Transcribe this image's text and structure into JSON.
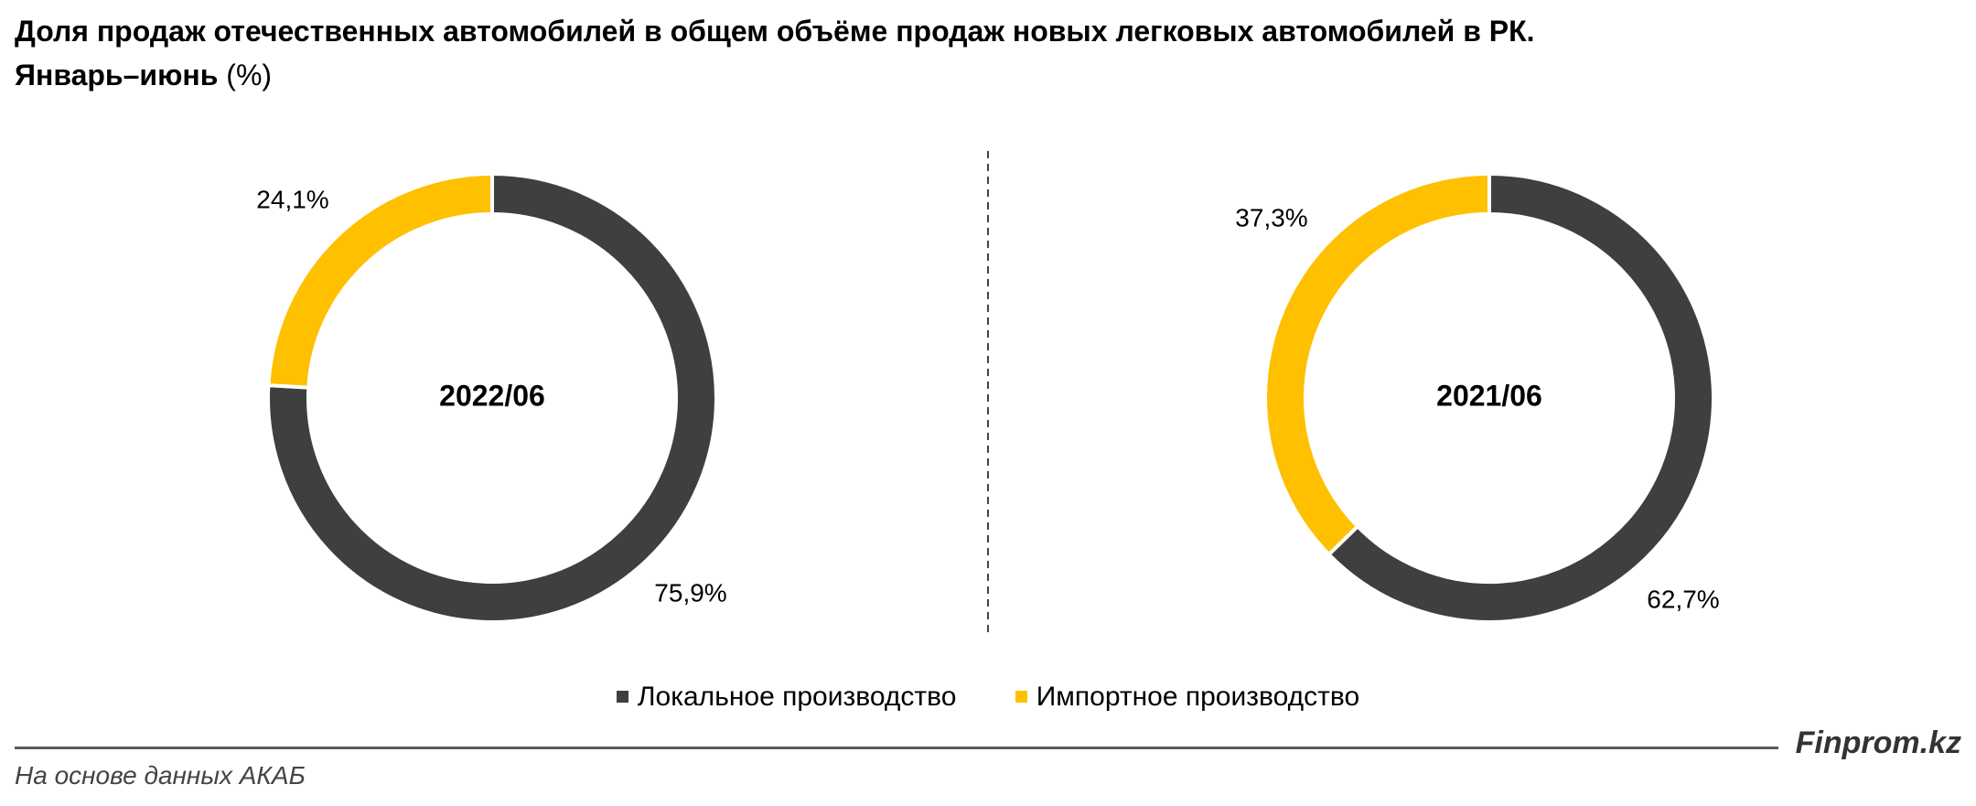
{
  "title": {
    "line1": "Доля продаж отечественных автомобилей в общем объёме продаж новых легковых автомобилей в РК.",
    "line2": "Январь–июнь",
    "unit": "(%)"
  },
  "chart_data": [
    {
      "type": "pie",
      "variant": "donut",
      "center_label": "2022/06",
      "categories": [
        "Локальное производство",
        "Импортное производство"
      ],
      "values": [
        75.9,
        24.1
      ],
      "value_labels": [
        "75,9%",
        "24,1%"
      ],
      "colors": [
        "#3f3f3f",
        "#ffc000"
      ]
    },
    {
      "type": "pie",
      "variant": "donut",
      "center_label": "2021/06",
      "categories": [
        "Локальное производство",
        "Импортное производство"
      ],
      "values": [
        62.7,
        37.3
      ],
      "value_labels": [
        "62,7%",
        "37,3%"
      ],
      "colors": [
        "#3f3f3f",
        "#ffc000"
      ]
    }
  ],
  "legend": {
    "placement": "bottom",
    "items": [
      {
        "label": "Локальное производство",
        "color": "#3f3f3f"
      },
      {
        "label": "Импортное производство",
        "color": "#ffc000"
      }
    ]
  },
  "footer": {
    "brand": "Finprom.kz",
    "source": "На основе данных АКАБ"
  }
}
